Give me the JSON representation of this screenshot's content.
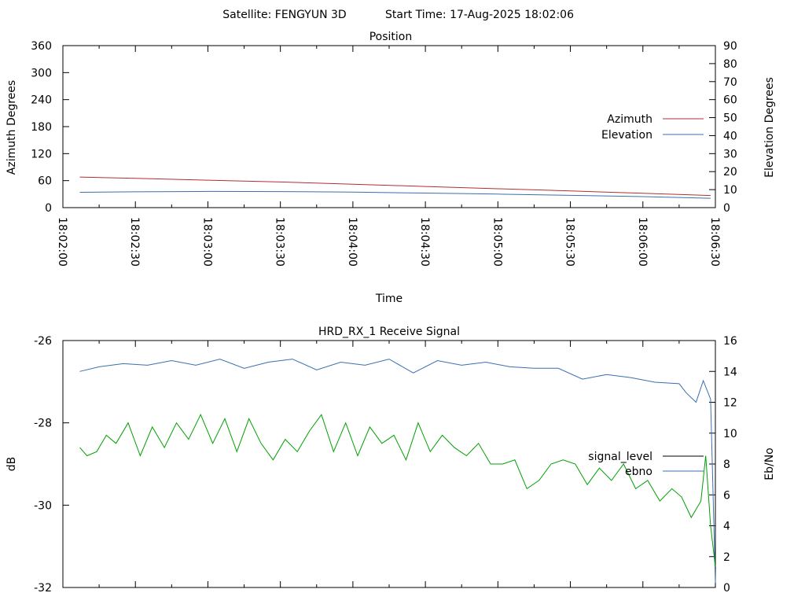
{
  "header": {
    "satellite": "Satellite: FENGYUN 3D",
    "start_time": "Start Time: 17-Aug-2025 18:02:06"
  },
  "chart_data": [
    {
      "type": "line",
      "title": "Position",
      "xlabel": "Time",
      "ylabel": "Azimuth Degrees",
      "y2label": "Elevation Degrees",
      "x_ticks": [
        "18:02:00",
        "18:02:30",
        "18:03:00",
        "18:03:30",
        "18:04:00",
        "18:04:30",
        "18:05:00",
        "18:05:30",
        "18:06:00",
        "18:06:30"
      ],
      "x_range_seconds": [
        0,
        270
      ],
      "ylim": [
        0,
        360
      ],
      "y_ticks": [
        "0",
        "60",
        "120",
        "180",
        "240",
        "300",
        "360"
      ],
      "y2lim": [
        0,
        90
      ],
      "y2_ticks": [
        "0",
        "10",
        "20",
        "30",
        "40",
        "50",
        "60",
        "70",
        "80",
        "90"
      ],
      "legend_position": "right",
      "series": [
        {
          "name": "Azimuth",
          "axis": "left",
          "color": "#b03030",
          "x": [
            7,
            30,
            60,
            90,
            120,
            150,
            180,
            210,
            240,
            268
          ],
          "values": [
            68,
            65,
            61,
            57,
            52,
            47,
            42,
            37,
            32,
            27
          ]
        },
        {
          "name": "Elevation",
          "axis": "right",
          "color": "#3a6fb0",
          "x": [
            7,
            30,
            60,
            90,
            120,
            150,
            180,
            210,
            240,
            268
          ],
          "values": [
            8.5,
            8.8,
            9.0,
            8.9,
            8.6,
            8.1,
            7.5,
            6.8,
            6.1,
            5.2
          ]
        }
      ]
    },
    {
      "type": "line",
      "title": "HRD_RX_1 Receive Signal",
      "ylabel": "dB",
      "y2label": "Eb/No",
      "ylim": [
        -32,
        -26
      ],
      "y_ticks": [
        "-32",
        "-30",
        "-28",
        "-26"
      ],
      "y2lim": [
        0,
        16
      ],
      "y2_ticks": [
        "0",
        "2",
        "4",
        "6",
        "8",
        "10",
        "12",
        "14",
        "16"
      ],
      "legend_position": "right",
      "legend": [
        {
          "name": "signal_level",
          "color": "#000000"
        },
        {
          "name": "ebno",
          "color": "#3a6fb0"
        }
      ],
      "series": [
        {
          "name": "ebno",
          "axis": "right",
          "color": "#3a6fb0",
          "x": [
            7,
            15,
            25,
            35,
            45,
            55,
            65,
            75,
            85,
            95,
            105,
            115,
            125,
            135,
            145,
            155,
            165,
            175,
            185,
            195,
            205,
            215,
            225,
            235,
            245,
            255,
            258,
            262,
            265,
            268,
            270
          ],
          "values": [
            14.0,
            14.3,
            14.5,
            14.4,
            14.7,
            14.4,
            14.8,
            14.2,
            14.6,
            14.8,
            14.1,
            14.6,
            14.4,
            14.8,
            13.9,
            14.7,
            14.4,
            14.6,
            14.3,
            14.2,
            14.2,
            13.5,
            13.8,
            13.6,
            13.3,
            13.2,
            12.6,
            12.0,
            13.4,
            12.2,
            0.3
          ]
        },
        {
          "name": "green",
          "axis": "left",
          "color": "#00a000",
          "x": [
            7,
            10,
            14,
            18,
            22,
            27,
            32,
            37,
            42,
            47,
            52,
            57,
            62,
            67,
            72,
            77,
            82,
            87,
            92,
            97,
            102,
            107,
            112,
            117,
            122,
            127,
            132,
            137,
            142,
            147,
            152,
            157,
            162,
            167,
            172,
            177,
            182,
            187,
            192,
            197,
            202,
            207,
            212,
            217,
            222,
            227,
            232,
            237,
            242,
            247,
            252,
            256,
            260,
            264,
            266,
            268,
            270
          ],
          "values": [
            -28.6,
            -28.8,
            -28.7,
            -28.3,
            -28.5,
            -28.0,
            -28.8,
            -28.1,
            -28.6,
            -28.0,
            -28.4,
            -27.8,
            -28.5,
            -27.9,
            -28.7,
            -27.9,
            -28.5,
            -28.9,
            -28.4,
            -28.7,
            -28.2,
            -27.8,
            -28.7,
            -28.0,
            -28.8,
            -28.1,
            -28.5,
            -28.3,
            -28.9,
            -28.0,
            -28.7,
            -28.3,
            -28.6,
            -28.8,
            -28.5,
            -29.0,
            -29.0,
            -28.9,
            -29.6,
            -29.4,
            -29.0,
            -28.9,
            -29.0,
            -29.5,
            -29.1,
            -29.4,
            -29.0,
            -29.6,
            -29.4,
            -29.9,
            -29.6,
            -29.8,
            -30.3,
            -29.9,
            -28.8,
            -30.5,
            -31.5
          ]
        }
      ]
    }
  ]
}
